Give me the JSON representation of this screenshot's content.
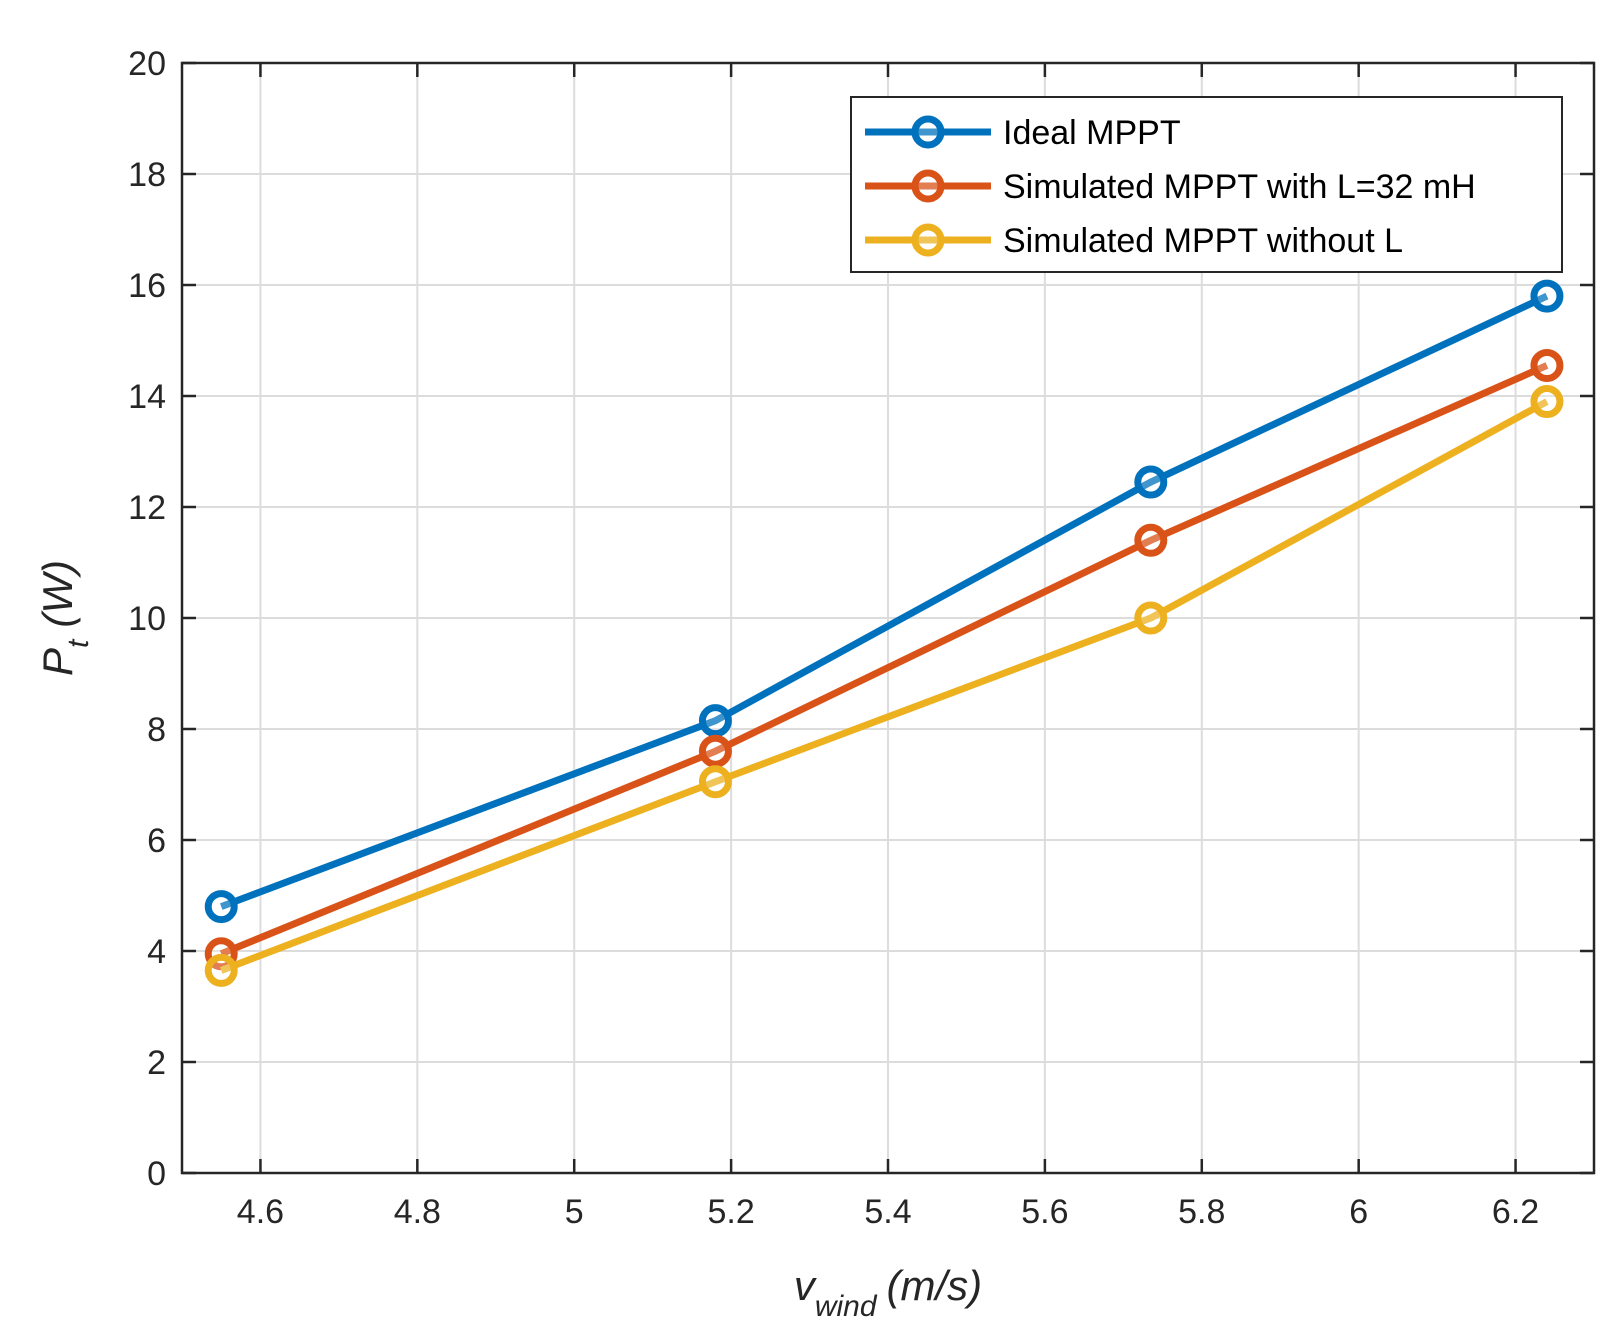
{
  "chart_data": {
    "type": "line",
    "title": "",
    "xlabel": {
      "main": "v",
      "sub": "wind",
      "unit": "(m/s)"
    },
    "ylabel": {
      "main": "P",
      "sub": "t",
      "unit": "(W)"
    },
    "xlim": [
      4.5,
      6.3
    ],
    "ylim": [
      0,
      20
    ],
    "xticks": [
      4.6,
      4.8,
      5,
      5.2,
      5.4,
      5.6,
      5.8,
      6,
      6.2
    ],
    "xtick_labels": [
      "4.6",
      "4.8",
      "5",
      "5.2",
      "5.4",
      "5.6",
      "5.8",
      "6",
      "6.2"
    ],
    "yticks": [
      0,
      2,
      4,
      6,
      8,
      10,
      12,
      14,
      16,
      18,
      20
    ],
    "ytick_labels": [
      "0",
      "2",
      "4",
      "6",
      "8",
      "10",
      "12",
      "14",
      "16",
      "18",
      "20"
    ],
    "grid": true,
    "legend_position": "top-right",
    "x": [
      4.55,
      5.18,
      5.735,
      6.24
    ],
    "series": [
      {
        "name": "Ideal MPPT",
        "color": "#0072BD",
        "marker": "circle",
        "values": [
          4.8,
          8.15,
          12.45,
          15.8
        ]
      },
      {
        "name": "Simulated MPPT with L=32 mH",
        "color": "#D95319",
        "marker": "circle",
        "values": [
          3.95,
          7.6,
          11.4,
          14.55
        ]
      },
      {
        "name": "Simulated MPPT without L",
        "color": "#EDB120",
        "marker": "circle",
        "values": [
          3.65,
          7.05,
          10.0,
          13.9
        ]
      }
    ]
  }
}
